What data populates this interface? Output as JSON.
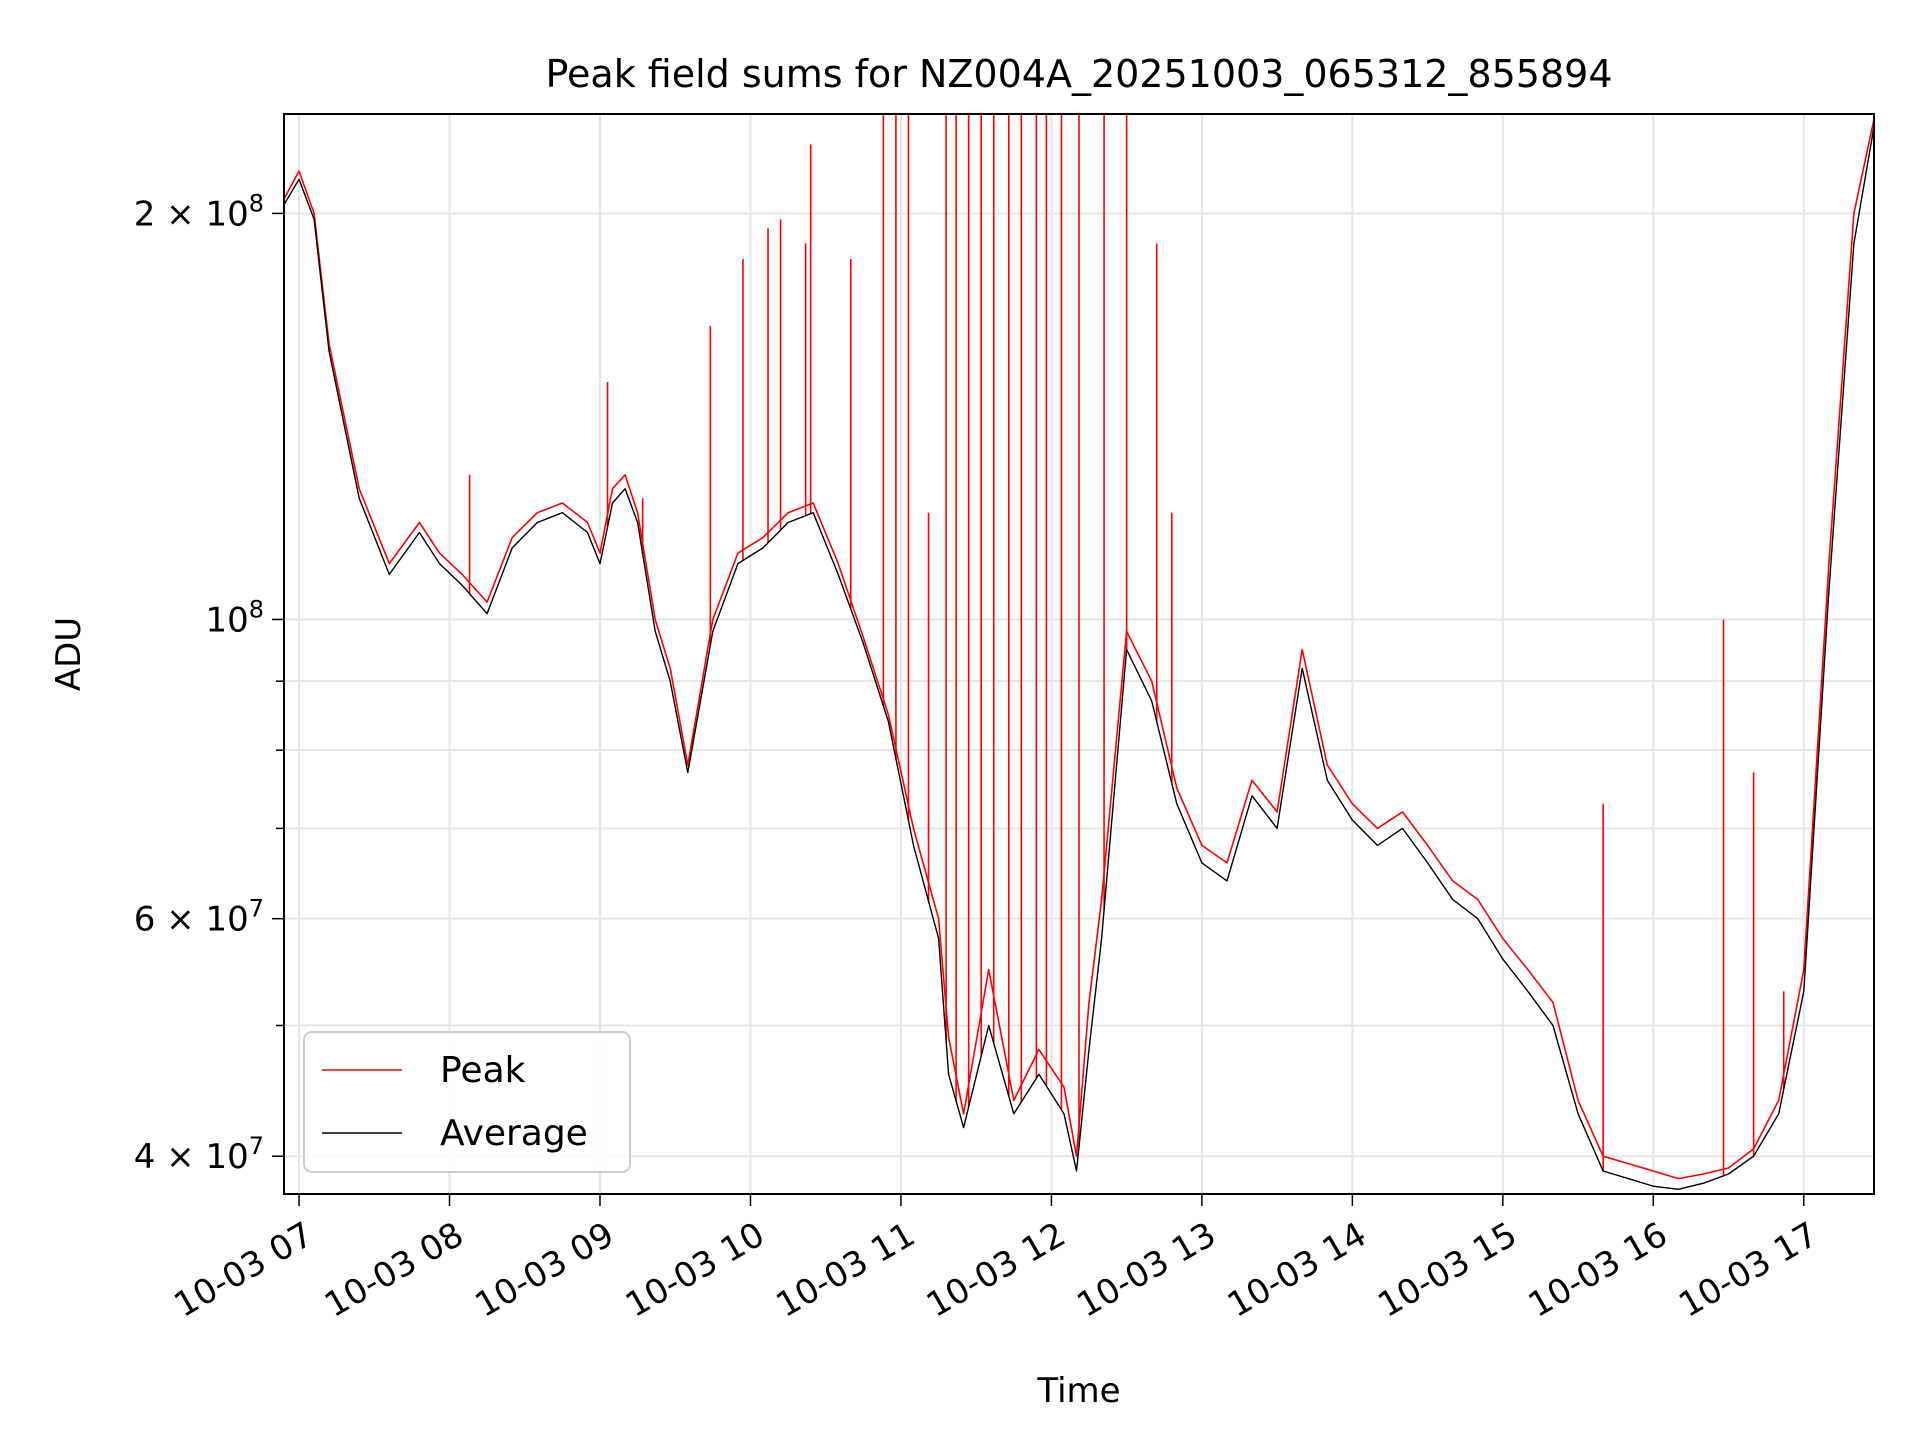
{
  "chart_data": {
    "type": "line",
    "title": "Peak field sums for NZ004A_20251003_065312_855894",
    "xlabel": "Time",
    "ylabel": "ADU",
    "y_scale": "log",
    "ylim": [
      37500000,
      237000000
    ],
    "xlim": [
      "2025-10-03 06:54",
      "2025-10-03 17:28"
    ],
    "grid": true,
    "legend_position": "lower-left",
    "x_ticks": [
      "10-03 07",
      "10-03 08",
      "10-03 09",
      "10-03 10",
      "10-03 11",
      "10-03 12",
      "10-03 13",
      "10-03 14",
      "10-03 15",
      "10-03 16",
      "10-03 17"
    ],
    "x_tick_times": [
      "2025-10-03 07:00",
      "2025-10-03 08:00",
      "2025-10-03 09:00",
      "2025-10-03 10:00",
      "2025-10-03 11:00",
      "2025-10-03 12:00",
      "2025-10-03 13:00",
      "2025-10-03 14:00",
      "2025-10-03 15:00",
      "2025-10-03 16:00",
      "2025-10-03 17:00"
    ],
    "y_ticks": [
      {
        "value": 40000000,
        "base": "4 × 10",
        "exp": "7"
      },
      {
        "value": 60000000,
        "base": "6 × 10",
        "exp": "7"
      },
      {
        "value": 100000000,
        "base": "10",
        "exp": "8"
      },
      {
        "value": 200000000,
        "base": "2 × 10",
        "exp": "8"
      }
    ],
    "series": [
      {
        "name": "Peak",
        "color": "#ff0000",
        "x": [
          "2025-10-03 06:54",
          "2025-10-03 07:00",
          "2025-10-03 07:06",
          "2025-10-03 07:12",
          "2025-10-03 07:24",
          "2025-10-03 07:36",
          "2025-10-03 07:48",
          "2025-10-03 07:56",
          "2025-10-03 08:05",
          "2025-10-03 08:15",
          "2025-10-03 08:25",
          "2025-10-03 08:35",
          "2025-10-03 08:45",
          "2025-10-03 08:55",
          "2025-10-03 09:00",
          "2025-10-03 09:05",
          "2025-10-03 09:10",
          "2025-10-03 09:15",
          "2025-10-03 09:22",
          "2025-10-03 09:28",
          "2025-10-03 09:35",
          "2025-10-03 09:45",
          "2025-10-03 09:55",
          "2025-10-03 10:05",
          "2025-10-03 10:15",
          "2025-10-03 10:25",
          "2025-10-03 10:35",
          "2025-10-03 10:45",
          "2025-10-03 10:55",
          "2025-10-03 11:05",
          "2025-10-03 11:15",
          "2025-10-03 11:19",
          "2025-10-03 11:25",
          "2025-10-03 11:35",
          "2025-10-03 11:45",
          "2025-10-03 11:55",
          "2025-10-03 12:05",
          "2025-10-03 12:10",
          "2025-10-03 12:15",
          "2025-10-03 12:20",
          "2025-10-03 12:30",
          "2025-10-03 12:40",
          "2025-10-03 12:50",
          "2025-10-03 13:00",
          "2025-10-03 13:10",
          "2025-10-03 13:20",
          "2025-10-03 13:30",
          "2025-10-03 13:40",
          "2025-10-03 13:50",
          "2025-10-03 14:00",
          "2025-10-03 14:10",
          "2025-10-03 14:20",
          "2025-10-03 14:30",
          "2025-10-03 14:40",
          "2025-10-03 14:50",
          "2025-10-03 15:00",
          "2025-10-03 15:10",
          "2025-10-03 15:20",
          "2025-10-03 15:30",
          "2025-10-03 15:40",
          "2025-10-03 15:50",
          "2025-10-03 16:00",
          "2025-10-03 16:10",
          "2025-10-03 16:20",
          "2025-10-03 16:30",
          "2025-10-03 16:40",
          "2025-10-03 16:50",
          "2025-10-03 17:00",
          "2025-10-03 17:10",
          "2025-10-03 17:20",
          "2025-10-03 17:28"
        ],
        "values": [
          205000000,
          215000000,
          200000000,
          160000000,
          125000000,
          110000000,
          118000000,
          112000000,
          108000000,
          103000000,
          115000000,
          120000000,
          122000000,
          118000000,
          112000000,
          125000000,
          128000000,
          120000000,
          100000000,
          92000000,
          78000000,
          100000000,
          112000000,
          115000000,
          120000000,
          122000000,
          110000000,
          97000000,
          85000000,
          70000000,
          60000000,
          49000000,
          43000000,
          55000000,
          44000000,
          48000000,
          45000000,
          40000000,
          52000000,
          62000000,
          98000000,
          90000000,
          75000000,
          68000000,
          66000000,
          76000000,
          72000000,
          95000000,
          78000000,
          73000000,
          70000000,
          72000000,
          68000000,
          64000000,
          62000000,
          58000000,
          55000000,
          52000000,
          44000000,
          40000000,
          39500000,
          39000000,
          38500000,
          38800000,
          39200000,
          40500000,
          44000000,
          55000000,
          110000000,
          200000000,
          235000000
        ]
      },
      {
        "name": "Average",
        "color": "#000000",
        "x": [
          "2025-10-03 06:54",
          "2025-10-03 07:00",
          "2025-10-03 07:06",
          "2025-10-03 07:12",
          "2025-10-03 07:24",
          "2025-10-03 07:36",
          "2025-10-03 07:48",
          "2025-10-03 07:56",
          "2025-10-03 08:05",
          "2025-10-03 08:15",
          "2025-10-03 08:25",
          "2025-10-03 08:35",
          "2025-10-03 08:45",
          "2025-10-03 08:55",
          "2025-10-03 09:00",
          "2025-10-03 09:05",
          "2025-10-03 09:10",
          "2025-10-03 09:15",
          "2025-10-03 09:22",
          "2025-10-03 09:28",
          "2025-10-03 09:35",
          "2025-10-03 09:45",
          "2025-10-03 09:55",
          "2025-10-03 10:05",
          "2025-10-03 10:15",
          "2025-10-03 10:25",
          "2025-10-03 10:35",
          "2025-10-03 10:45",
          "2025-10-03 10:55",
          "2025-10-03 11:05",
          "2025-10-03 11:15",
          "2025-10-03 11:19",
          "2025-10-03 11:25",
          "2025-10-03 11:35",
          "2025-10-03 11:45",
          "2025-10-03 11:55",
          "2025-10-03 12:05",
          "2025-10-03 12:10",
          "2025-10-03 12:15",
          "2025-10-03 12:20",
          "2025-10-03 12:30",
          "2025-10-03 12:40",
          "2025-10-03 12:50",
          "2025-10-03 13:00",
          "2025-10-03 13:10",
          "2025-10-03 13:20",
          "2025-10-03 13:30",
          "2025-10-03 13:40",
          "2025-10-03 13:50",
          "2025-10-03 14:00",
          "2025-10-03 14:10",
          "2025-10-03 14:20",
          "2025-10-03 14:30",
          "2025-10-03 14:40",
          "2025-10-03 14:50",
          "2025-10-03 15:00",
          "2025-10-03 15:10",
          "2025-10-03 15:20",
          "2025-10-03 15:30",
          "2025-10-03 15:40",
          "2025-10-03 15:50",
          "2025-10-03 16:00",
          "2025-10-03 16:10",
          "2025-10-03 16:20",
          "2025-10-03 16:30",
          "2025-10-03 16:40",
          "2025-10-03 16:50",
          "2025-10-03 17:00",
          "2025-10-03 17:10",
          "2025-10-03 17:20",
          "2025-10-03 17:28"
        ],
        "values": [
          203000000,
          212000000,
          198000000,
          158000000,
          123000000,
          108000000,
          116000000,
          110000000,
          106000000,
          101000000,
          113000000,
          118000000,
          120000000,
          116000000,
          110000000,
          122000000,
          125000000,
          118000000,
          98000000,
          90000000,
          77000000,
          98000000,
          110000000,
          113000000,
          118000000,
          120000000,
          108000000,
          96000000,
          84000000,
          68000000,
          58000000,
          46000000,
          42000000,
          50000000,
          43000000,
          46000000,
          43000000,
          39000000,
          48000000,
          58000000,
          95000000,
          87000000,
          73000000,
          66000000,
          64000000,
          74000000,
          70000000,
          92000000,
          76000000,
          71000000,
          68000000,
          70000000,
          66000000,
          62000000,
          60000000,
          56000000,
          53000000,
          50000000,
          43000000,
          39000000,
          38500000,
          38000000,
          37800000,
          38200000,
          38800000,
          40000000,
          43000000,
          53000000,
          105000000,
          190000000,
          232000000
        ]
      }
    ],
    "peak_spikes": [
      {
        "x": "2025-10-03 08:08",
        "value": 128000000
      },
      {
        "x": "2025-10-03 09:03",
        "value": 150000000
      },
      {
        "x": "2025-10-03 09:17",
        "value": 123000000
      },
      {
        "x": "2025-10-03 09:44",
        "value": 165000000
      },
      {
        "x": "2025-10-03 09:57",
        "value": 185000000
      },
      {
        "x": "2025-10-03 10:07",
        "value": 195000000
      },
      {
        "x": "2025-10-03 10:12",
        "value": 198000000
      },
      {
        "x": "2025-10-03 10:22",
        "value": 190000000
      },
      {
        "x": "2025-10-03 10:24",
        "value": 225000000
      },
      {
        "x": "2025-10-03 10:40",
        "value": 185000000
      },
      {
        "x": "2025-10-03 10:53",
        "value": 237000000
      },
      {
        "x": "2025-10-03 10:58",
        "value": 237000000
      },
      {
        "x": "2025-10-03 11:03",
        "value": 237000000
      },
      {
        "x": "2025-10-03 11:11",
        "value": 120000000
      },
      {
        "x": "2025-10-03 11:18",
        "value": 237000000
      },
      {
        "x": "2025-10-03 11:22",
        "value": 237000000
      },
      {
        "x": "2025-10-03 11:27",
        "value": 237000000
      },
      {
        "x": "2025-10-03 11:32",
        "value": 237000000
      },
      {
        "x": "2025-10-03 11:37",
        "value": 237000000
      },
      {
        "x": "2025-10-03 11:43",
        "value": 237000000
      },
      {
        "x": "2025-10-03 11:48",
        "value": 237000000
      },
      {
        "x": "2025-10-03 11:54",
        "value": 237000000
      },
      {
        "x": "2025-10-03 11:58",
        "value": 237000000
      },
      {
        "x": "2025-10-03 12:04",
        "value": 237000000
      },
      {
        "x": "2025-10-03 12:11",
        "value": 237000000
      },
      {
        "x": "2025-10-03 12:21",
        "value": 237000000
      },
      {
        "x": "2025-10-03 12:30",
        "value": 237000000
      },
      {
        "x": "2025-10-03 12:42",
        "value": 190000000
      },
      {
        "x": "2025-10-03 12:48",
        "value": 120000000
      },
      {
        "x": "2025-10-03 15:40",
        "value": 73000000
      },
      {
        "x": "2025-10-03 16:28",
        "value": 100000000
      },
      {
        "x": "2025-10-03 16:40",
        "value": 77000000
      },
      {
        "x": "2025-10-03 16:52",
        "value": 53000000
      }
    ]
  }
}
